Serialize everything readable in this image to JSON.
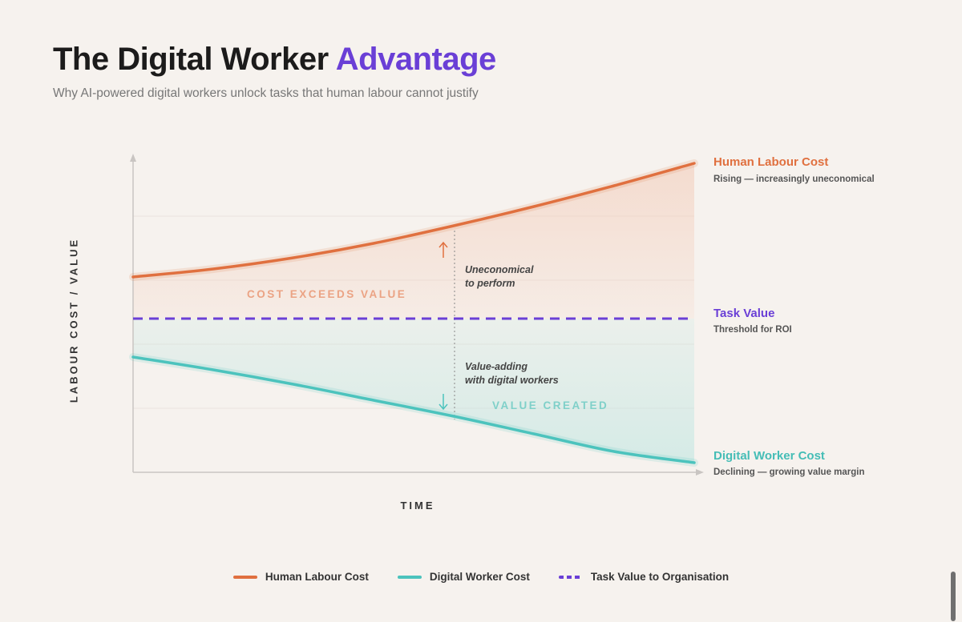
{
  "header": {
    "title_main": "The Digital Worker",
    "title_accent": "Advantage",
    "subtitle": "Why AI-powered digital workers unlock tasks that human labour cannot justify"
  },
  "chart_data": {
    "type": "line",
    "ylabel": "LABOUR COST / VALUE",
    "xlabel": "TIME",
    "x": [
      0,
      1,
      2,
      3,
      4,
      5,
      6,
      7
    ],
    "ylim": [
      0,
      100
    ],
    "grid": true,
    "series": [
      {
        "name": "Human Labour Cost",
        "color": "#e0703f",
        "values": [
          61,
          63.5,
          67,
          71.5,
          77,
          83,
          89.5,
          96.5
        ]
      },
      {
        "name": "Digital Worker Cost",
        "color": "#4cc3bd",
        "values": [
          36,
          32,
          27.5,
          22.5,
          17.5,
          12,
          6.5,
          3
        ]
      },
      {
        "name": "Task Value",
        "color": "#6a3fd6",
        "dashed": true,
        "values": [
          48,
          48,
          48,
          48,
          48,
          48,
          48,
          48
        ]
      }
    ],
    "annotations": {
      "zone_above": "COST EXCEEDS VALUE",
      "zone_below": "VALUE CREATED",
      "note_up_1": "Uneconomical",
      "note_up_2": "to perform",
      "note_down_1": "Value-adding",
      "note_down_2": "with digital workers"
    },
    "end_labels": {
      "human_title": "Human Labour Cost",
      "human_sub": "Rising — increasingly uneconomical",
      "task_title": "Task Value",
      "task_sub": "Threshold for ROI",
      "digital_title": "Digital Worker Cost",
      "digital_sub": "Declining — growing value margin"
    }
  },
  "legend": {
    "items": [
      {
        "label": "Human Labour Cost",
        "color": "#e0703f"
      },
      {
        "label": "Digital Worker Cost",
        "color": "#4cc3bd"
      },
      {
        "label": "Task Value to Organisation",
        "color": "#6a3fd6"
      }
    ]
  }
}
